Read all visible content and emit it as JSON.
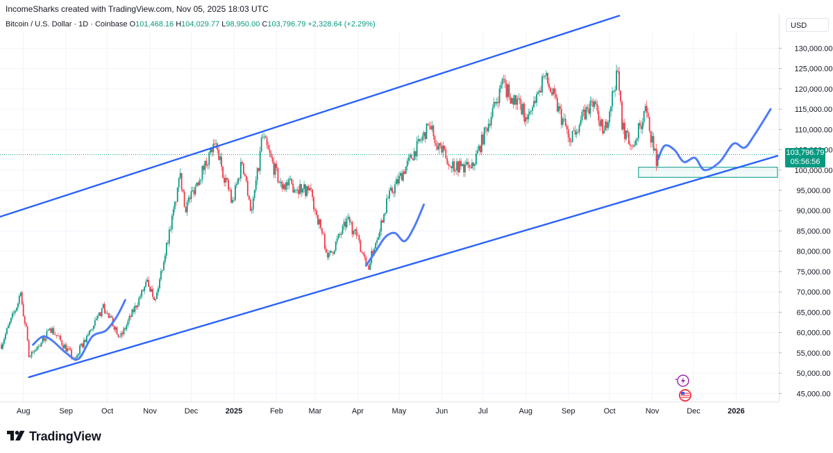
{
  "header": {
    "attribution": "IncomeSharks created with TradingView.com, Nov 05, 2025 18:03 UTC"
  },
  "legend": {
    "symbol": "Bitcoin / U.S. Dollar · 1D · Coinbase",
    "open_label": "O",
    "open": "101,468.16",
    "high_label": "H",
    "high": "104,029.77",
    "low_label": "L",
    "low": "98,950.00",
    "close_label": "C",
    "close": "103,796.79",
    "change": "+2,328.64 (+2.29%)"
  },
  "currency": "USD",
  "price_tag": {
    "price": "103,796.79",
    "countdown": "05:56:56"
  },
  "brand": {
    "name": "TradingView"
  },
  "colors": {
    "up": "#089981",
    "down": "#f23645",
    "trendline": "#2962ff",
    "projection": "#4f7cf5",
    "accent_box": "#26a69a"
  },
  "icons": [
    "tradingview-logo-icon",
    "lightning-icon",
    "us-flag-icon"
  ],
  "chart_data": {
    "type": "candlestick",
    "title": "Bitcoin / U.S. Dollar · 1D · Coinbase",
    "y_ticks": [
      "45,000.00",
      "50,000.00",
      "55,000.00",
      "60,000.00",
      "65,000.00",
      "70,000.00",
      "75,000.00",
      "80,000.00",
      "85,000.00",
      "90,000.00",
      "95,000.00",
      "100,000.00",
      "105,000.00",
      "110,000.00",
      "115,000.00",
      "120,000.00",
      "125,000.00",
      "130,000.00"
    ],
    "ylim": [
      43000,
      134000
    ],
    "x_labels": [
      "Aug",
      "Sep",
      "Oct",
      "Nov",
      "Dec",
      "2025",
      "Feb",
      "Mar",
      "Apr",
      "May",
      "Jun",
      "Jul",
      "Aug",
      "Sep",
      "Oct",
      "Nov",
      "Dec",
      "2026"
    ],
    "x_months": [
      "2024-08",
      "2024-09",
      "2024-10",
      "2024-11",
      "2024-12",
      "2025-01",
      "2025-02",
      "2025-03",
      "2025-04",
      "2025-05",
      "2025-06",
      "2025-07",
      "2025-08",
      "2025-09",
      "2025-10",
      "2025-11",
      "2025-12",
      "2026-01"
    ],
    "xlim": [
      "2024-07-15",
      "2026-02-01"
    ],
    "last_price": 103796.79,
    "price_path": [
      [
        "2024-07-15",
        57000
      ],
      [
        "2024-07-29",
        69000
      ],
      [
        "2024-08-05",
        54000
      ],
      [
        "2024-08-20",
        61000
      ],
      [
        "2024-09-06",
        53500
      ],
      [
        "2024-09-27",
        66000
      ],
      [
        "2024-10-10",
        59000
      ],
      [
        "2024-10-29",
        72500
      ],
      [
        "2024-11-04",
        68000
      ],
      [
        "2024-11-22",
        98000
      ],
      [
        "2024-11-26",
        91000
      ],
      [
        "2024-12-17",
        106500
      ],
      [
        "2024-12-30",
        92000
      ],
      [
        "2025-01-06",
        102000
      ],
      [
        "2025-01-13",
        90000
      ],
      [
        "2025-01-21",
        108000
      ],
      [
        "2025-02-02",
        97000
      ],
      [
        "2025-02-24",
        95000
      ],
      [
        "2025-03-10",
        78500
      ],
      [
        "2025-03-24",
        88000
      ],
      [
        "2025-04-08",
        76500
      ],
      [
        "2025-04-22",
        93000
      ],
      [
        "2025-05-22",
        111000
      ],
      [
        "2025-06-05",
        101500
      ],
      [
        "2025-06-22",
        100500
      ],
      [
        "2025-07-14",
        121000
      ],
      [
        "2025-08-01",
        113000
      ],
      [
        "2025-08-14",
        123000
      ],
      [
        "2025-09-01",
        108000
      ],
      [
        "2025-09-18",
        117000
      ],
      [
        "2025-09-26",
        109000
      ],
      [
        "2025-10-06",
        124500
      ],
      [
        "2025-10-10",
        110000
      ],
      [
        "2025-10-17",
        106000
      ],
      [
        "2025-10-26",
        114500
      ],
      [
        "2025-11-04",
        101000
      ],
      [
        "2025-11-05",
        103796.79
      ]
    ],
    "channel_upper": [
      [
        "2024-07-15",
        88500
      ],
      [
        "2025-10-08",
        138000
      ]
    ],
    "channel_lower": [
      [
        "2024-08-05",
        49000
      ],
      [
        "2026-01-31",
        103500
      ]
    ],
    "projections": [
      [
        [
          "2024-08-08",
          57000
        ],
        [
          "2024-08-15",
          59000
        ],
        [
          "2024-08-22",
          58000
        ],
        [
          "2024-09-01",
          55000
        ],
        [
          "2024-09-10",
          53500
        ],
        [
          "2024-09-20",
          59000
        ],
        [
          "2024-09-30",
          60500
        ],
        [
          "2024-10-08",
          64000
        ],
        [
          "2024-10-14",
          68000
        ]
      ],
      [
        [
          "2025-04-07",
          76500
        ],
        [
          "2025-04-14",
          80000
        ],
        [
          "2025-04-21",
          83500
        ],
        [
          "2025-04-28",
          84500
        ],
        [
          "2025-05-05",
          82500
        ],
        [
          "2025-05-12",
          86000
        ],
        [
          "2025-05-19",
          91500
        ]
      ],
      [
        [
          "2025-11-05",
          102500
        ],
        [
          "2025-11-10",
          106000
        ],
        [
          "2025-11-17",
          105000
        ],
        [
          "2025-11-24",
          102000
        ],
        [
          "2025-12-02",
          103000
        ],
        [
          "2025-12-09",
          100000
        ],
        [
          "2025-12-20",
          102000
        ],
        [
          "2025-12-30",
          106500
        ],
        [
          "2026-01-07",
          105500
        ],
        [
          "2026-01-14",
          108500
        ],
        [
          "2026-01-26",
          115000
        ]
      ]
    ],
    "support_zone": {
      "from": "2025-10-22",
      "to": "2026-01-31",
      "low": 98200,
      "high": 100700
    },
    "grid": true
  }
}
